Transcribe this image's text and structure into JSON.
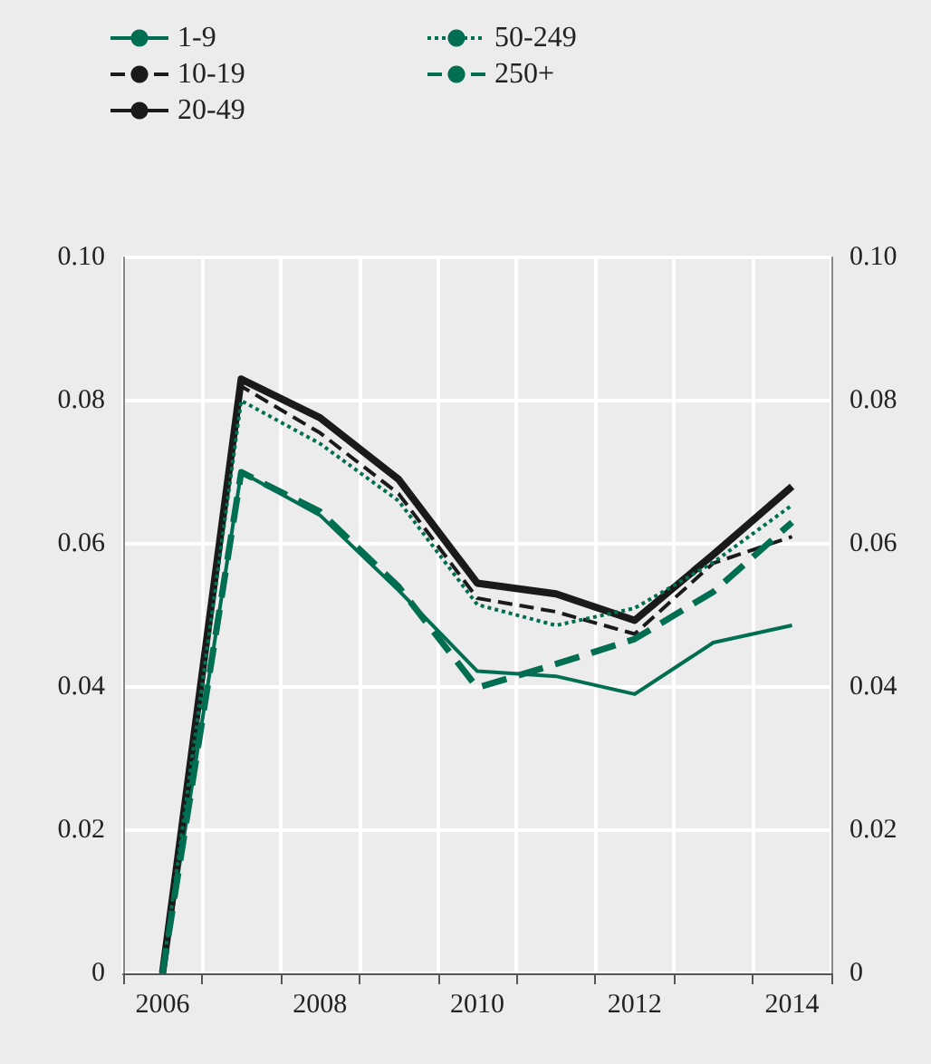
{
  "chart_data": {
    "type": "line",
    "categories": [
      "2006",
      null,
      "2008",
      null,
      "2010",
      null,
      "2012",
      null,
      "2014"
    ],
    "ylim": [
      0,
      0.1
    ],
    "yticks": [
      0,
      0.02,
      0.04,
      0.06,
      0.08,
      {
        "value": 0.1,
        "label": "0.10"
      }
    ],
    "y2lim": [
      0,
      0.1
    ],
    "y2ticks": [
      0,
      0.02,
      0.04,
      0.06,
      0.08,
      {
        "value": 0.1,
        "label": "0.10"
      }
    ],
    "grid": true,
    "legend": "top left",
    "marker": "none",
    "series": [
      {
        "name": "1-9",
        "color": "#006e51",
        "line_style": "solid",
        "values": [
          0,
          0.07,
          0.064,
          0.0535,
          0.0422,
          0.0415,
          0.039,
          0.0462,
          0.0486
        ]
      },
      {
        "name": "10-19",
        "color": "#1a1a1a",
        "line_style": "dashed",
        "values": [
          0,
          0.082,
          0.0755,
          0.067,
          0.0524,
          0.0505,
          0.0474,
          0.0573,
          0.061
        ]
      },
      {
        "name": "20-49",
        "color": "#1a1a1a",
        "line_style": "solid",
        "values": [
          0,
          0.083,
          0.0776,
          0.069,
          0.0545,
          0.053,
          0.0493,
          0.0585,
          0.068
        ]
      },
      {
        "name": "50-249",
        "color": "#006e51",
        "line_style": "dotted",
        "values": [
          0,
          0.08,
          0.074,
          0.066,
          0.0515,
          0.0486,
          0.051,
          0.0574,
          0.0654
        ]
      },
      {
        "name": "250+",
        "color": "#006e51",
        "line_style": "dashed",
        "values": [
          0,
          0.07,
          0.0645,
          0.054,
          0.0399,
          0.0432,
          0.0467,
          0.0533,
          0.063
        ]
      }
    ]
  }
}
